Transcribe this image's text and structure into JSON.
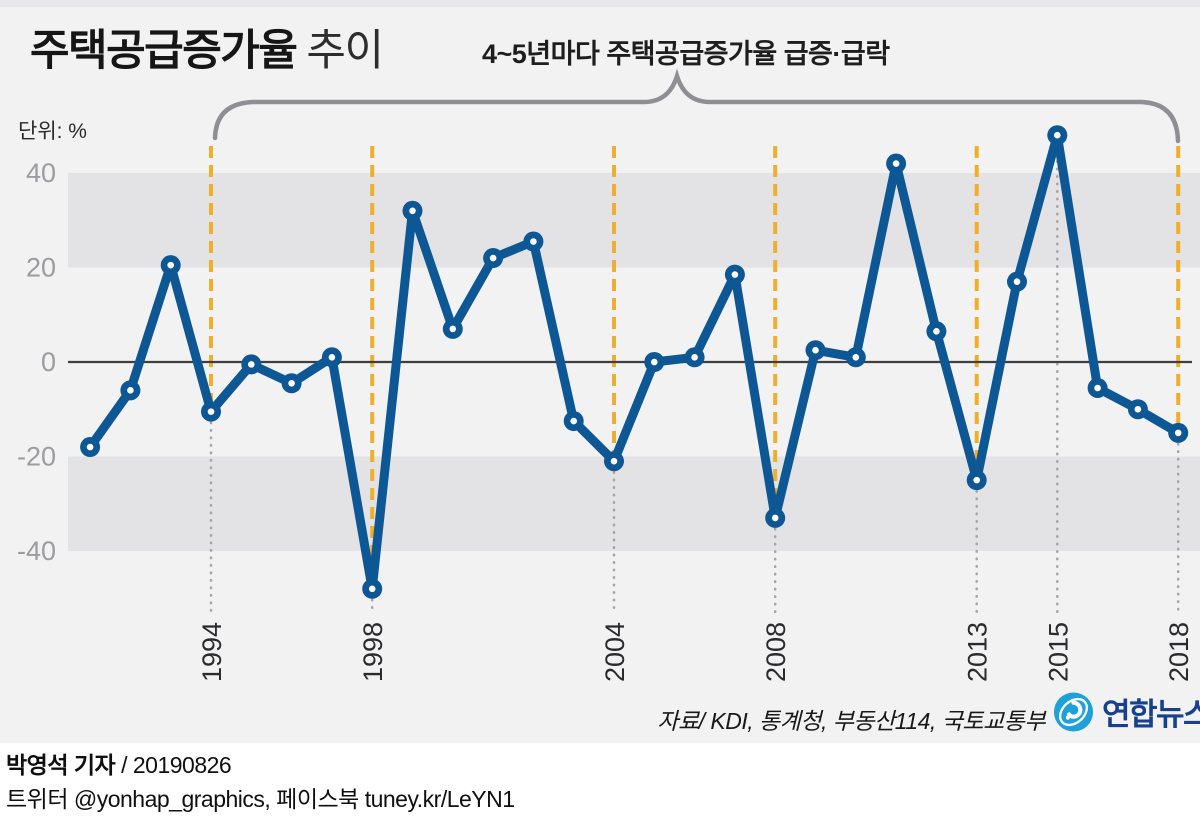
{
  "header": {
    "title_main": "주택공급증가율",
    "title_sub": "추이",
    "annotation": "4~5년마다 주택공급증가율 급증·급락",
    "unit_label": "단위: %"
  },
  "chart_data": {
    "type": "line",
    "title": "주택공급증가율 추이",
    "series_name": "주택공급증가율",
    "ylabel": "%",
    "ylim": [
      -55,
      52
    ],
    "yticks": [
      40,
      20,
      0,
      -20,
      -40
    ],
    "ytick_labels": [
      "40",
      "20",
      "0",
      "-20",
      "-40"
    ],
    "grid": false,
    "shaded_bands": [
      [
        20,
        40
      ],
      [
        -40,
        -20
      ]
    ],
    "x": [
      1991,
      1992,
      1993,
      1994,
      1995,
      1996,
      1997,
      1998,
      1999,
      2000,
      2001,
      2002,
      2003,
      2004,
      2005,
      2006,
      2007,
      2008,
      2009,
      2010,
      2011,
      2012,
      2013,
      2014,
      2015,
      2016,
      2017,
      2018
    ],
    "values": [
      -18,
      -6,
      20.5,
      -10.5,
      -0.5,
      -4.5,
      1,
      -48,
      32,
      7,
      22,
      25.5,
      -12.5,
      -21,
      0,
      1,
      18.5,
      -33,
      2.5,
      1,
      42,
      6.5,
      -25,
      17,
      48,
      -5.5,
      -10,
      -15
    ],
    "x_tick_labels": [
      "1994",
      "1998",
      "2004",
      "2008",
      "2013",
      "2015",
      "2018"
    ],
    "highlighted_years": [
      1994,
      1998,
      2004,
      2008,
      2013,
      2015,
      2018
    ],
    "annotation": "4~5년마다 주택공급증가율 급증·급락"
  },
  "footer": {
    "source": "자료/ KDI, 통계청, 부동산114, 국토교통부",
    "logo_text": "연합뉴스",
    "credit_line1_bold": "박영석 기자",
    "credit_line1_rest": " /  20190826",
    "credit_line2": "트위터 @yonhap_graphics, 페이스북 tuney.kr/LeYN1"
  },
  "colors": {
    "background": "#f2f2f3",
    "band": "#e3e3e5",
    "line": "#0e5795",
    "marker_center": "#ffffff",
    "guide_orange": "#efaf2b",
    "guide_dotted_gray": "#a5a5a8",
    "zero_line": "#3f3f41",
    "ytick_text": "#9c9ca0",
    "xtick_text": "#2b2b2e",
    "brace": "#8f8f93",
    "logo_circle": "#1da1d8",
    "logo_text": "#17418f"
  }
}
